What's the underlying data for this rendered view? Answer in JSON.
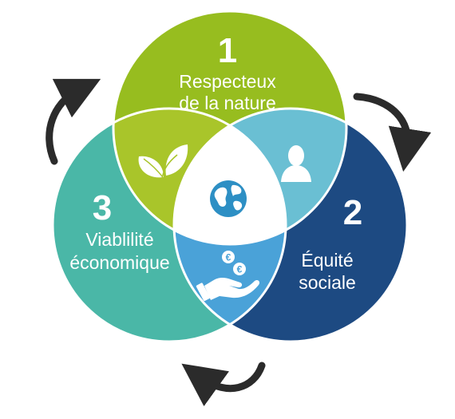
{
  "colors": {
    "green": "#97bd1f",
    "green_overlap": "#a9c52a",
    "navy": "#1d4a82",
    "teal": "#4ab7a7",
    "light_blue": "#6abfd3",
    "mid_blue": "#4aa2d8",
    "center": "#ffffff",
    "arrow": "#2b2b2b"
  },
  "circles": [
    {
      "number": "1",
      "line1": "Respecteux",
      "line2": "de la nature",
      "icon": "leaves-icon"
    },
    {
      "number": "2",
      "line1": "Équité",
      "line2": "sociale",
      "icon": "person-icon"
    },
    {
      "number": "3",
      "line1": "Viablilité",
      "line2": "économique",
      "icon": "hand-euro-icon"
    }
  ],
  "center_icon": "globe-icon",
  "cycle_arrows": [
    "arrow-top-left-icon",
    "arrow-top-right-icon",
    "arrow-bottom-icon"
  ]
}
